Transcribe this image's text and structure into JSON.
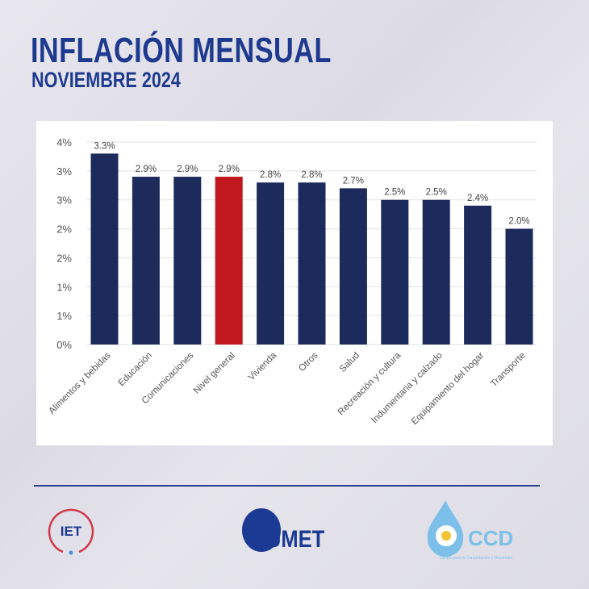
{
  "header": {
    "title": "INFLACIÓN MENSUAL",
    "subtitle": "NOVIEMBRE 2024"
  },
  "chart_data": {
    "type": "bar",
    "title": "",
    "xlabel": "",
    "ylabel": "",
    "ylim": [
      0,
      3.5
    ],
    "yticks": [
      0,
      0.5,
      1,
      1.5,
      2,
      2.5,
      3,
      3.5
    ],
    "ytick_labels": [
      "0%",
      "1%",
      "1%",
      "2%",
      "2%",
      "3%",
      "3%",
      "4%"
    ],
    "categories": [
      "Alimentos y bebidas",
      "Educación",
      "Comunicaciones",
      "Nivel general",
      "Vivienda",
      "Otros",
      "Salud",
      "Recreación y cultura",
      "Indumentaria y calzado",
      "Equipamiento del hogar",
      "Transporte"
    ],
    "values": [
      3.3,
      2.9,
      2.9,
      2.9,
      2.8,
      2.8,
      2.7,
      2.5,
      2.5,
      2.4,
      2.0
    ],
    "data_labels": [
      "3.3%",
      "2.9%",
      "2.9%",
      "2.9%",
      "2.8%",
      "2.8%",
      "2.7%",
      "2.5%",
      "2.5%",
      "2.4%",
      "2.0%"
    ],
    "highlight_index": 3,
    "colors": {
      "bar": "#1c2b5c",
      "highlight": "#c0181c",
      "grid": "#e2e2e2"
    },
    "grid": true
  },
  "footer": {
    "logos": {
      "iet": "IET",
      "umet": "UMET",
      "ccd": "CCD",
      "ccd_tagline": "Centro para la Concertación y Desarrollo"
    }
  }
}
